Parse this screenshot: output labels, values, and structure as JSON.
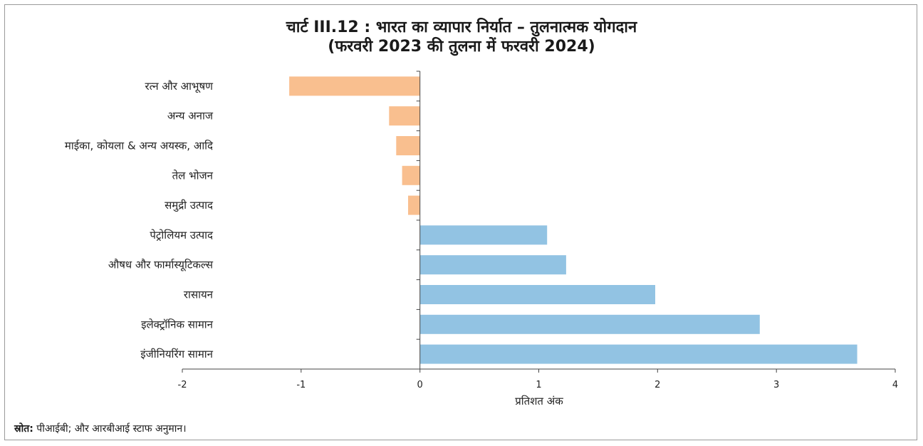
{
  "chart_data": {
    "type": "bar",
    "orientation": "horizontal",
    "title": "चार्ट III.12 : भारत का व्यापार निर्यात – तुलनात्मक योगदान",
    "subtitle": "(फरवरी 2023 की तुलना में फरवरी 2024)",
    "xlabel": "प्रतिशत अंक",
    "ylabel": "",
    "xlim": [
      -2,
      4
    ],
    "xticks": [
      "-2",
      "-1",
      "0",
      "1",
      "2",
      "3",
      "4"
    ],
    "grid": false,
    "legend": "none",
    "categories": [
      "रत्न और आभूषण",
      "अन्य अनाज",
      "माईका, कोयला & अन्य अयस्क, आदि",
      "तेल भोजन",
      "समुद्री उत्पाद",
      "पेट्रोलियम उत्पाद",
      "औषध और फार्मास्यूटिकल्स",
      "रासायन",
      "इलेक्ट्रॉनिक सामान",
      "इंजीनियरिंग सामान"
    ],
    "values": [
      -1.1,
      -0.26,
      -0.2,
      -0.15,
      -0.1,
      1.07,
      1.23,
      1.98,
      2.86,
      3.68
    ],
    "colors": {
      "negative": "#f9bf8f",
      "positive": "#92c3e3"
    }
  },
  "source": {
    "label": "स्रोत:",
    "text": " पीआईबी; और आरबीआई स्टाफ अनुमान।"
  }
}
